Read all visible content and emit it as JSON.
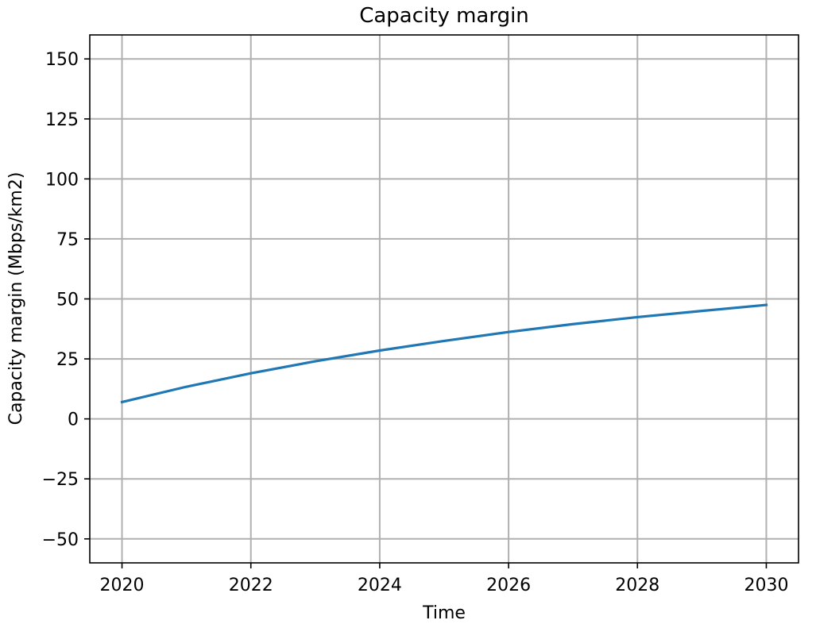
{
  "chart_data": {
    "type": "line",
    "title": "Capacity margin",
    "xlabel": "Time",
    "ylabel": "Capacity margin (Mbps/km2)",
    "xlim": [
      2019.5,
      2030.5
    ],
    "ylim": [
      -60,
      160
    ],
    "xticks": [
      2020,
      2022,
      2024,
      2026,
      2028,
      2030
    ],
    "yticks": [
      -50,
      -25,
      0,
      25,
      50,
      75,
      100,
      125,
      150
    ],
    "ytick_labels": [
      "−50",
      "−25",
      "0",
      "25",
      "50",
      "75",
      "100",
      "125",
      "150"
    ],
    "grid": true,
    "series": [
      {
        "color": "#1f77b4",
        "x": [
          2020,
          2021,
          2022,
          2023,
          2024,
          2025,
          2026,
          2027,
          2028,
          2029,
          2030
        ],
        "y": [
          7,
          13.4,
          19,
          24,
          28.5,
          32.5,
          36.2,
          39.5,
          42.4,
          45,
          47.5
        ]
      }
    ]
  }
}
